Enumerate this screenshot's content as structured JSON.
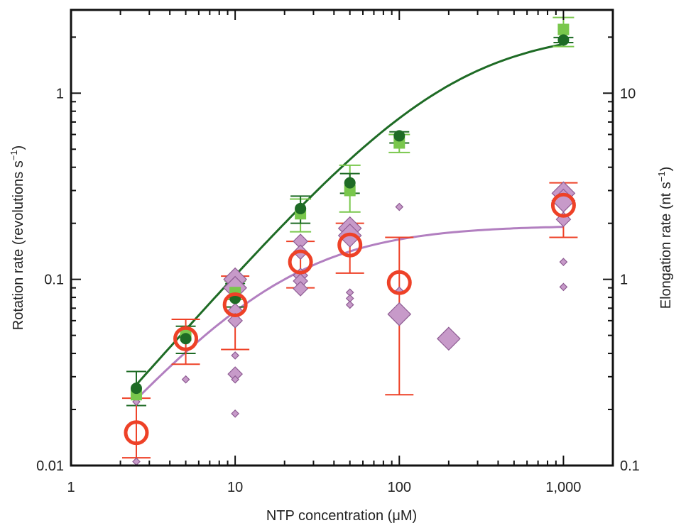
{
  "chart_data": {
    "type": "scatter",
    "xlabel": "NTP concentration (μM)",
    "ylabel_left_prefix": "Rotation rate (revolutions s",
    "ylabel_left_sup": "−1",
    "ylabel_left_suffix": ")",
    "ylabel_right_prefix": "Elongation rate (nt s",
    "ylabel_right_sup": "−1",
    "ylabel_right_suffix": ")",
    "x_scale": "log",
    "y_scale": "log",
    "xlim": [
      1,
      2000
    ],
    "ylim_left": [
      0.01,
      2.8
    ],
    "ylim_right": [
      0.1,
      28
    ],
    "x_ticks": [
      {
        "value": 1,
        "label": "1"
      },
      {
        "value": 10,
        "label": "10"
      },
      {
        "value": 100,
        "label": "100"
      },
      {
        "value": 1000,
        "label": "1,000"
      }
    ],
    "y_ticks_left": [
      {
        "value": 0.01,
        "label": "0.01"
      },
      {
        "value": 0.1,
        "label": "0.1"
      },
      {
        "value": 1,
        "label": "1"
      }
    ],
    "y_ticks_right": [
      {
        "value": 0.1,
        "label": "0.1"
      },
      {
        "value": 1,
        "label": "1"
      },
      {
        "value": 10,
        "label": "10"
      }
    ],
    "colors": {
      "dark_green": "#1e6b25",
      "light_green": "#79c74c",
      "purple_fill": "#c79ac9",
      "purple_edge": "#8e5c93",
      "purple_line": "#b27fc0",
      "red": "#ee4127",
      "axis": "#111111"
    },
    "series": [
      {
        "marker": "circle-filled",
        "color": "#1e6b25",
        "axis": "left",
        "points": [
          {
            "x": 2.5,
            "y": 0.026,
            "err_lo": 0.021,
            "err_hi": 0.032
          },
          {
            "x": 5,
            "y": 0.048,
            "err_lo": 0.04,
            "err_hi": 0.056
          },
          {
            "x": 10,
            "y": 0.079,
            "err_lo": 0.071,
            "err_hi": 0.095
          },
          {
            "x": 25,
            "y": 0.24,
            "err_lo": 0.2,
            "err_hi": 0.28
          },
          {
            "x": 50,
            "y": 0.33,
            "err_lo": 0.29,
            "err_hi": 0.37
          },
          {
            "x": 100,
            "y": 0.59,
            "err_lo": 0.54,
            "err_hi": 0.62
          },
          {
            "x": 1000,
            "y": 1.93,
            "err_lo": 1.87,
            "err_hi": 1.99
          }
        ]
      },
      {
        "marker": "square",
        "color": "#79c74c",
        "axis": "left",
        "points": [
          {
            "x": 2.5,
            "y": 0.024
          },
          {
            "x": 5,
            "y": 0.05
          },
          {
            "x": 10,
            "y": 0.085,
            "err_lo": 0.078,
            "err_hi": 0.098
          },
          {
            "x": 25,
            "y": 0.225,
            "err_lo": 0.18,
            "err_hi": 0.27
          },
          {
            "x": 50,
            "y": 0.3,
            "err_lo": 0.23,
            "err_hi": 0.41
          },
          {
            "x": 100,
            "y": 0.54,
            "err_lo": 0.48,
            "err_hi": 0.6
          },
          {
            "x": 1000,
            "y": 2.2,
            "err_lo": 1.78,
            "err_hi": 2.55
          }
        ]
      },
      {
        "marker": "circle-open",
        "color": "#ee4127",
        "axis": "left",
        "points": [
          {
            "x": 2.5,
            "y": 0.015,
            "err_lo": 0.011,
            "err_hi": 0.023
          },
          {
            "x": 5,
            "y": 0.048,
            "err_lo": 0.035,
            "err_hi": 0.061
          },
          {
            "x": 10,
            "y": 0.073,
            "err_lo": 0.042,
            "err_hi": 0.104
          },
          {
            "x": 25,
            "y": 0.124,
            "err_lo": 0.09,
            "err_hi": 0.16
          },
          {
            "x": 50,
            "y": 0.153,
            "err_lo": 0.108,
            "err_hi": 0.2
          },
          {
            "x": 100,
            "y": 0.096,
            "err_lo": 0.024,
            "err_hi": 0.168
          },
          {
            "x": 1000,
            "y": 0.25,
            "err_lo": 0.168,
            "err_hi": 0.33
          }
        ]
      },
      {
        "marker": "diamond",
        "color": "#c79ac9",
        "axis": "left",
        "points": [
          {
            "x": 2.5,
            "y": 0.022,
            "size": "small"
          },
          {
            "x": 2.5,
            "y": 0.0105,
            "size": "small"
          },
          {
            "x": 5,
            "y": 0.029,
            "size": "small"
          },
          {
            "x": 10,
            "y": 0.1,
            "size": "large"
          },
          {
            "x": 10,
            "y": 0.09,
            "size": "large"
          },
          {
            "x": 10,
            "y": 0.068,
            "size": "medium"
          },
          {
            "x": 10,
            "y": 0.06,
            "size": "medium"
          },
          {
            "x": 10,
            "y": 0.039,
            "size": "small"
          },
          {
            "x": 10,
            "y": 0.031,
            "size": "medium"
          },
          {
            "x": 10,
            "y": 0.029,
            "size": "small"
          },
          {
            "x": 10,
            "y": 0.019,
            "size": "small"
          },
          {
            "x": 25,
            "y": 0.16,
            "size": "medium"
          },
          {
            "x": 25,
            "y": 0.14,
            "size": "medium"
          },
          {
            "x": 25,
            "y": 0.105,
            "size": "medium"
          },
          {
            "x": 25,
            "y": 0.098,
            "size": "medium"
          },
          {
            "x": 25,
            "y": 0.089,
            "size": "medium"
          },
          {
            "x": 50,
            "y": 0.188,
            "size": "large"
          },
          {
            "x": 50,
            "y": 0.172,
            "size": "large"
          },
          {
            "x": 50,
            "y": 0.085,
            "size": "small"
          },
          {
            "x": 50,
            "y": 0.079,
            "size": "small"
          },
          {
            "x": 50,
            "y": 0.073,
            "size": "small"
          },
          {
            "x": 100,
            "y": 0.245,
            "size": "small"
          },
          {
            "x": 100,
            "y": 0.087,
            "size": "small"
          },
          {
            "x": 100,
            "y": 0.065,
            "size": "large"
          },
          {
            "x": 200,
            "y": 0.048,
            "size": "large"
          },
          {
            "x": 1000,
            "y": 0.29,
            "size": "large"
          },
          {
            "x": 1000,
            "y": 0.265,
            "size": "large"
          },
          {
            "x": 1000,
            "y": 0.21,
            "size": "medium"
          },
          {
            "x": 1000,
            "y": 0.124,
            "size": "small"
          },
          {
            "x": 1000,
            "y": 0.091,
            "size": "small"
          }
        ]
      }
    ],
    "fits": [
      {
        "color": "#1e6b25",
        "model": "michaelis-menten",
        "vmax": 2.2,
        "km": 200,
        "x_range": [
          2.5,
          1000
        ]
      },
      {
        "color": "#b27fc0",
        "model": "michaelis-menten",
        "vmax": 0.195,
        "km": 19,
        "x_range": [
          2.5,
          1000
        ]
      }
    ]
  }
}
